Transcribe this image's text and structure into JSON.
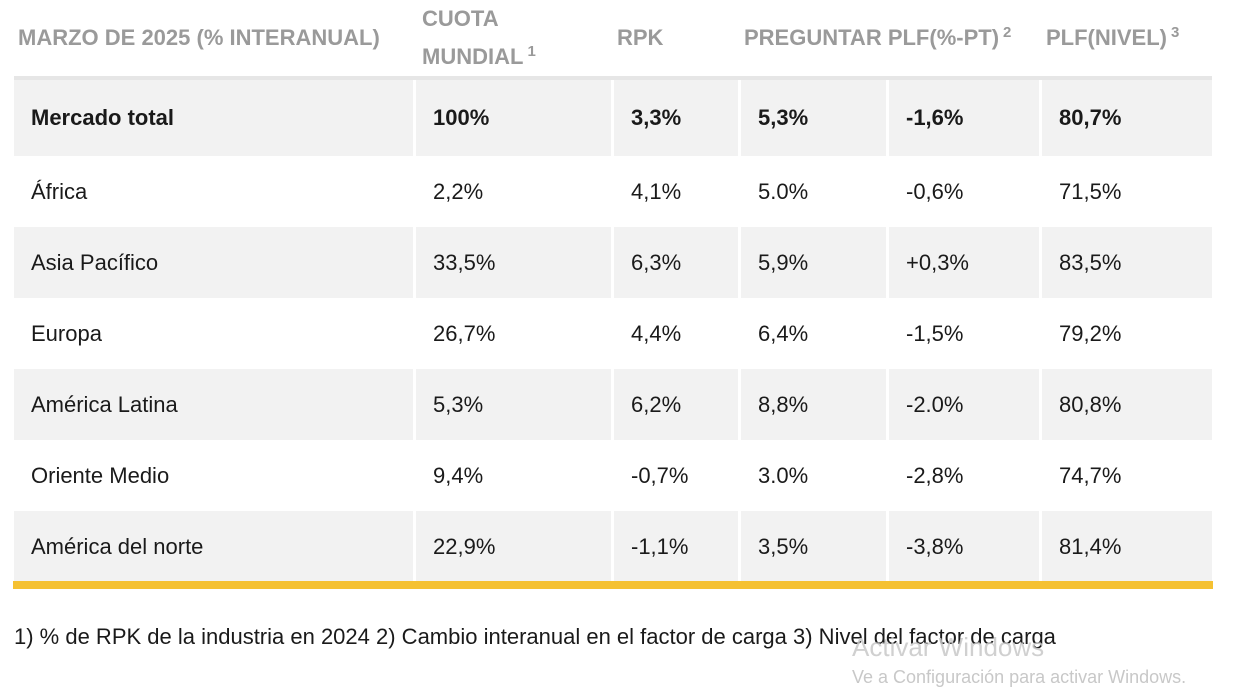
{
  "table": {
    "headers": [
      {
        "label": "MARZO DE 2025 (% INTERANUAL)",
        "sup": ""
      },
      {
        "label": "CUOTA MUNDIAL",
        "sup": "1"
      },
      {
        "label": "RPK",
        "sup": ""
      },
      {
        "label": "PREGUNTAR PLF(%-PT)",
        "sup": "2"
      },
      {
        "label": "",
        "sup": ""
      },
      {
        "label": "PLF(NIVEL)",
        "sup": "3"
      }
    ],
    "rows": [
      {
        "region": "Mercado total",
        "cuota": "100%",
        "rpk": "3,3%",
        "ask": "5,3%",
        "plf_pt": "-1,6%",
        "plf_nivel": "80,7%"
      },
      {
        "region": "África",
        "cuota": "2,2%",
        "rpk": "4,1%",
        "ask": "5.0%",
        "plf_pt": "-0,6%",
        "plf_nivel": "71,5%"
      },
      {
        "region": "Asia Pacífico",
        "cuota": "33,5%",
        "rpk": "6,3%",
        "ask": "5,9%",
        "plf_pt": "+0,3%",
        "plf_nivel": "83,5%"
      },
      {
        "region": "Europa",
        "cuota": "26,7%",
        "rpk": "4,4%",
        "ask": "6,4%",
        "plf_pt": "-1,5%",
        "plf_nivel": "79,2%"
      },
      {
        "region": "América Latina",
        "cuota": "5,3%",
        "rpk": "6,2%",
        "ask": "8,8%",
        "plf_pt": "-2.0%",
        "plf_nivel": "80,8%"
      },
      {
        "region": "Oriente Medio",
        "cuota": "9,4%",
        "rpk": "-0,7%",
        "ask": "3.0%",
        "plf_pt": "-2,8%",
        "plf_nivel": "74,7%"
      },
      {
        "region": "América del norte",
        "cuota": "22,9%",
        "rpk": "-1,1%",
        "ask": "3,5%",
        "plf_pt": "-3,8%",
        "plf_nivel": "81,4%"
      }
    ]
  },
  "footnote": "1) % de RPK de la industria en 2024 2) Cambio interanual en el factor de carga 3) Nivel del factor de carga",
  "watermark": {
    "title": "Activar Windows",
    "subtitle": "Ve a Configuración para activar Windows."
  },
  "colors": {
    "accent_rule": "#f5c132",
    "row_shade": "#f2f2f2",
    "header_text": "#9a9a9a"
  }
}
